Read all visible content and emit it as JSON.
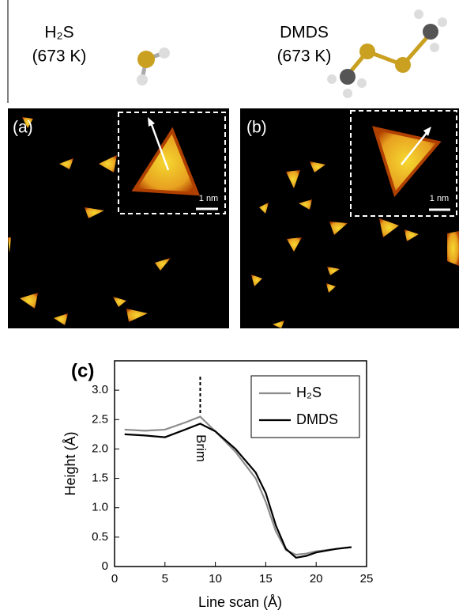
{
  "molecules": [
    {
      "name": "H₂S",
      "temp": "(673 K)"
    },
    {
      "name": "DMDS",
      "temp": "(673 K)"
    }
  ],
  "panels": [
    {
      "label": "(a)",
      "scale": "1 nm"
    },
    {
      "label": "(b)",
      "scale": "1 nm"
    }
  ],
  "chart_data": {
    "type": "line",
    "panel_label": "(c)",
    "x_label": "Line scan (Å)",
    "y_label": "Height (Å)",
    "xlim": [
      0,
      25
    ],
    "xticks": [
      0,
      5,
      10,
      15,
      20,
      25
    ],
    "ylim": [
      0,
      3.5
    ],
    "yticks": [
      0,
      0.5,
      {
        "value": 1,
        "label": "1.0"
      },
      1.5,
      {
        "value": 2,
        "label": "2.0"
      },
      2.5,
      {
        "value": 3,
        "label": "3.0"
      }
    ],
    "x": [
      1,
      3,
      5,
      7,
      8.5,
      10,
      12,
      14,
      15,
      16,
      17,
      18,
      19,
      20,
      22,
      23.5
    ],
    "series": [
      {
        "name": "H₂S",
        "color": "#8c8c8c",
        "values": [
          2.33,
          2.31,
          2.33,
          2.45,
          2.55,
          2.3,
          1.95,
          1.5,
          1.1,
          0.6,
          0.28,
          0.2,
          0.22,
          0.26,
          0.3,
          0.33
        ]
      },
      {
        "name": "DMDS",
        "color": "#000000",
        "values": [
          2.25,
          2.23,
          2.2,
          2.33,
          2.43,
          2.3,
          2.0,
          1.6,
          1.25,
          0.7,
          0.3,
          0.15,
          0.18,
          0.24,
          0.3,
          0.33
        ]
      }
    ],
    "annotations": [
      {
        "text": "Brim",
        "x": 8.5
      }
    ],
    "legend": "upper right"
  }
}
